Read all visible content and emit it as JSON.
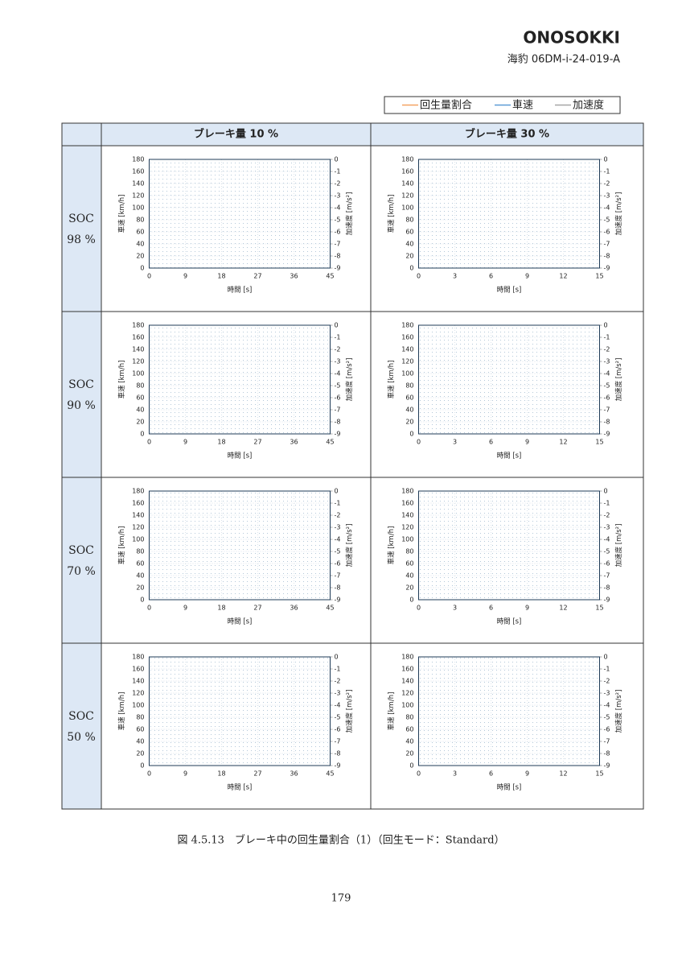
{
  "header": {
    "logo": "ONOSOKKI",
    "doc_id": "海豹 06DM-i-24-019-A"
  },
  "legend": [
    {
      "name": "回生量割合",
      "color": "#f4a261"
    },
    {
      "name": "車速",
      "color": "#5b9bd5"
    },
    {
      "name": "加速度",
      "color": "#a6a6a6"
    }
  ],
  "table": {
    "columns": [
      "ブレーキ量 10 %",
      "ブレーキ量 30 %"
    ],
    "rows": [
      {
        "label": "SOC",
        "value": "98 %",
        "charts": [
          {
            "xlim": [
              0,
              45
            ],
            "xticks": [
              0,
              9,
              18,
              27,
              36,
              45
            ],
            "ylim": [
              0,
              180
            ],
            "yticks": [
              0,
              20,
              40,
              60,
              80,
              100,
              120,
              140,
              160,
              180
            ],
            "y2lim": [
              -9,
              0
            ],
            "y2ticks": [
              0,
              -1,
              -2,
              -3,
              -4,
              -5,
              -6,
              -7,
              -8,
              -9
            ],
            "xlabel": "時間 [s]",
            "ylabel": "車速 [km/h]",
            "y2label": "加速度 [m/s²]"
          },
          {
            "xlim": [
              0,
              15
            ],
            "xticks": [
              0,
              3,
              6,
              9,
              12,
              15
            ],
            "ylim": [
              0,
              180
            ],
            "yticks": [
              0,
              20,
              40,
              60,
              80,
              100,
              120,
              140,
              160,
              180
            ],
            "y2lim": [
              -9,
              0
            ],
            "y2ticks": [
              0,
              -1,
              -2,
              -3,
              -4,
              -5,
              -6,
              -7,
              -8,
              -9
            ],
            "xlabel": "時間 [s]",
            "ylabel": "車速 [km/h]",
            "y2label": "加速度 [m/s²]"
          }
        ]
      },
      {
        "label": "SOC",
        "value": "90 %",
        "charts": [
          {
            "xlim": [
              0,
              45
            ],
            "xticks": [
              0,
              9,
              18,
              27,
              36,
              45
            ],
            "ylim": [
              0,
              180
            ],
            "yticks": [
              0,
              20,
              40,
              60,
              80,
              100,
              120,
              140,
              160,
              180
            ],
            "y2lim": [
              -9,
              0
            ],
            "y2ticks": [
              0,
              -1,
              -2,
              -3,
              -4,
              -5,
              -6,
              -7,
              -8,
              -9
            ],
            "xlabel": "時間 [s]",
            "ylabel": "車速 [km/h]",
            "y2label": "加速度 [m/s²]"
          },
          {
            "xlim": [
              0,
              15
            ],
            "xticks": [
              0,
              3,
              6,
              9,
              12,
              15
            ],
            "ylim": [
              0,
              180
            ],
            "yticks": [
              0,
              20,
              40,
              60,
              80,
              100,
              120,
              140,
              160,
              180
            ],
            "y2lim": [
              -9,
              0
            ],
            "y2ticks": [
              0,
              -1,
              -2,
              -3,
              -4,
              -5,
              -6,
              -7,
              -8,
              -9
            ],
            "xlabel": "時間 [s]",
            "ylabel": "車速 [km/h]",
            "y2label": "加速度 [m/s²]"
          }
        ]
      },
      {
        "label": "SOC",
        "value": "70 %",
        "charts": [
          {
            "xlim": [
              0,
              45
            ],
            "xticks": [
              0,
              9,
              18,
              27,
              36,
              45
            ],
            "ylim": [
              0,
              180
            ],
            "yticks": [
              0,
              20,
              40,
              60,
              80,
              100,
              120,
              140,
              160,
              180
            ],
            "y2lim": [
              -9,
              0
            ],
            "y2ticks": [
              0,
              -1,
              -2,
              -3,
              -4,
              -5,
              -6,
              -7,
              -8,
              -9
            ],
            "xlabel": "時間 [s]",
            "ylabel": "車速 [km/h]",
            "y2label": "加速度 [m/s²]"
          },
          {
            "xlim": [
              0,
              15
            ],
            "xticks": [
              0,
              3,
              6,
              9,
              12,
              15
            ],
            "ylim": [
              0,
              180
            ],
            "yticks": [
              0,
              20,
              40,
              60,
              80,
              100,
              120,
              140,
              160,
              180
            ],
            "y2lim": [
              -9,
              0
            ],
            "y2ticks": [
              0,
              -1,
              -2,
              -3,
              -4,
              -5,
              -6,
              -7,
              -8,
              -9
            ],
            "xlabel": "時間 [s]",
            "ylabel": "車速 [km/h]",
            "y2label": "加速度 [m/s²]"
          }
        ]
      },
      {
        "label": "SOC",
        "value": "50 %",
        "charts": [
          {
            "xlim": [
              0,
              45
            ],
            "xticks": [
              0,
              9,
              18,
              27,
              36,
              45
            ],
            "ylim": [
              0,
              180
            ],
            "yticks": [
              0,
              20,
              40,
              60,
              80,
              100,
              120,
              140,
              160,
              180
            ],
            "y2lim": [
              -9,
              0
            ],
            "y2ticks": [
              0,
              -1,
              -2,
              -3,
              -4,
              -5,
              -6,
              -7,
              -8,
              -9
            ],
            "xlabel": "時間 [s]",
            "ylabel": "車速 [km/h]",
            "y2label": "加速度 [m/s²]"
          },
          {
            "xlim": [
              0,
              15
            ],
            "xticks": [
              0,
              3,
              6,
              9,
              12,
              15
            ],
            "ylim": [
              0,
              180
            ],
            "yticks": [
              0,
              20,
              40,
              60,
              80,
              100,
              120,
              140,
              160,
              180
            ],
            "y2lim": [
              -9,
              0
            ],
            "y2ticks": [
              0,
              -1,
              -2,
              -3,
              -4,
              -5,
              -6,
              -7,
              -8,
              -9
            ],
            "xlabel": "時間 [s]",
            "ylabel": "車速 [km/h]",
            "y2label": "加速度 [m/s²]"
          }
        ]
      }
    ]
  },
  "caption": "図 4.5.13　ブレーキ中の回生量割合（1）（回生モード：Standard）",
  "page_number": "179"
}
